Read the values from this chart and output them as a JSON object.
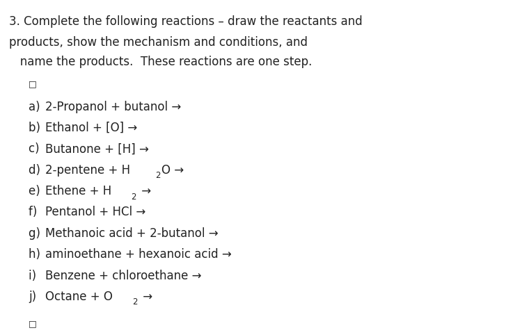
{
  "background_color": "#ffffff",
  "title_line1": "3. Complete the following reactions – draw the reactants and",
  "title_line2": "products, show the mechanism and conditions, and",
  "title_line3": "   name the products.  These reactions are one step.",
  "reactions": [
    {
      "label": "a) ",
      "text": "2-Propanol + butanol →"
    },
    {
      "label": "b) ",
      "text": "Ethanol + [O] →"
    },
    {
      "label": "c) ",
      "text": "Butanone + [H] →"
    },
    {
      "label": "d) ",
      "text": "2-pentene + H",
      "sub": "2",
      "text2": "O →"
    },
    {
      "label": "e) ",
      "text": "Ethene + H",
      "sub": "2",
      "text2": " →"
    },
    {
      "label": "f) ",
      "text": "Pentanol + HCl →"
    },
    {
      "label": "g) ",
      "text": "Methanoic acid + 2-butanol →"
    },
    {
      "label": "h) ",
      "text": "aminoethane + hexanoic acid →"
    },
    {
      "label": "i) ",
      "text": "Benzene + chloroethane →"
    },
    {
      "label": "j) ",
      "text": "Octane + O",
      "sub": "2",
      "text2": " →"
    }
  ],
  "font_size_title": 12.0,
  "font_size_body": 12.0,
  "font_family": "DejaVu Sans",
  "text_color": "#222222",
  "figsize": [
    7.5,
    4.82
  ],
  "dpi": 100
}
